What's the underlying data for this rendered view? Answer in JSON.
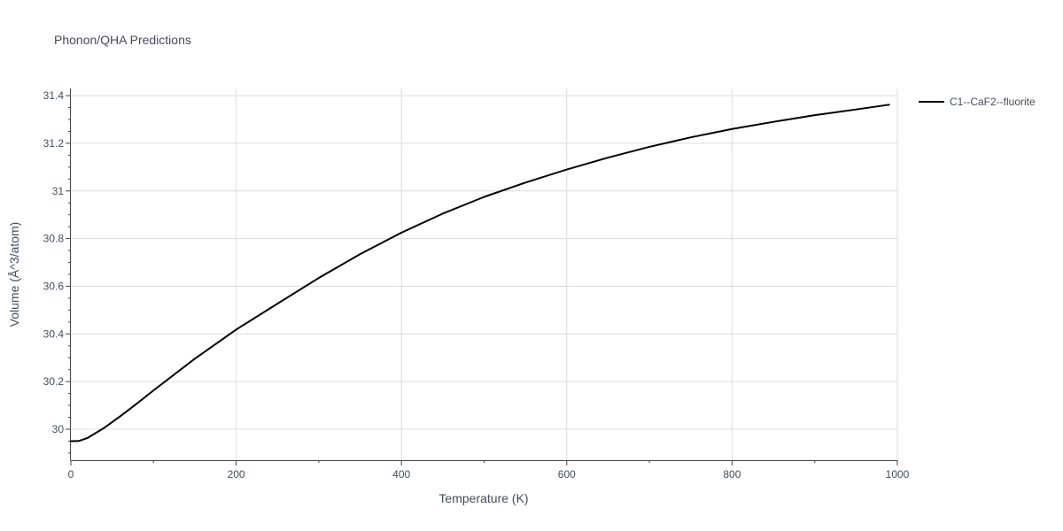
{
  "chart_data": {
    "type": "line",
    "title": "Phonon/QHA Predictions",
    "xlabel": "Temperature (K)",
    "ylabel": "Volume (Å^3/atom)",
    "xlim": [
      0,
      1000
    ],
    "ylim": [
      29.87,
      31.43
    ],
    "x_ticks": [
      0,
      200,
      400,
      600,
      800,
      1000
    ],
    "x_tick_labels": [
      "0",
      "200",
      "400",
      "600",
      "800",
      "1000"
    ],
    "y_ticks": [
      30.0,
      30.2,
      30.4,
      30.6,
      30.8,
      31.0,
      31.2,
      31.4
    ],
    "y_tick_labels": [
      "30",
      "30.2",
      "30.4",
      "30.6",
      "30.8",
      "31",
      "31.2",
      "31.4"
    ],
    "grid": true,
    "legend_position": "top-right",
    "series": [
      {
        "name": "C1--CaF2--fluorite",
        "color": "#000000",
        "x": [
          0,
          10,
          20,
          40,
          60,
          80,
          100,
          150,
          200,
          250,
          300,
          350,
          400,
          450,
          500,
          550,
          600,
          650,
          700,
          750,
          800,
          850,
          900,
          950,
          990
        ],
        "y": [
          29.95,
          29.951,
          29.963,
          30.005,
          30.055,
          30.108,
          30.163,
          30.296,
          30.418,
          30.527,
          30.635,
          30.735,
          30.825,
          30.905,
          30.975,
          31.035,
          31.09,
          31.14,
          31.185,
          31.225,
          31.26,
          31.29,
          31.318,
          31.342,
          31.362
        ]
      }
    ]
  }
}
